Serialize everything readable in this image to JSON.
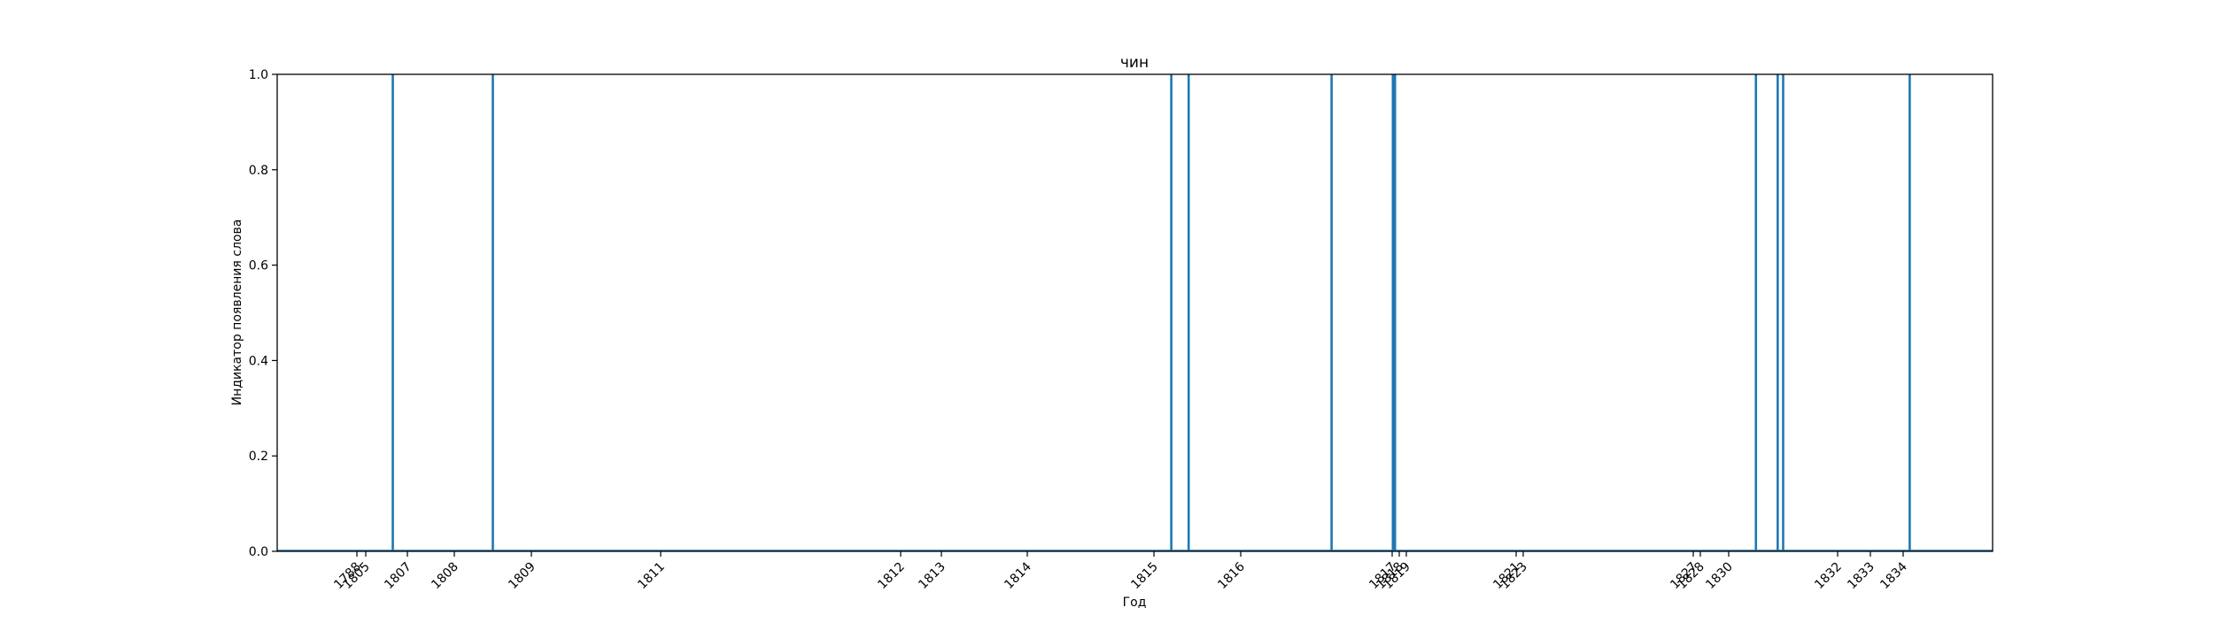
{
  "chart_data": {
    "type": "bar",
    "title": "чин",
    "xlabel": "Год",
    "ylabel": "Индикатор появления слова",
    "ylim": [
      0,
      1
    ],
    "yticks": [
      "0.0",
      "0.2",
      "0.4",
      "0.6",
      "0.8",
      "1.0"
    ],
    "xticks": [
      {
        "label": "1788",
        "value": 1788
      },
      {
        "label": "1805",
        "value": 1805
      },
      {
        "label": "1807",
        "value": 1807
      },
      {
        "label": "1808",
        "value": 1808
      },
      {
        "label": "1809",
        "value": 1809
      },
      {
        "label": "1811",
        "value": 1811
      },
      {
        "label": "1812",
        "value": 1812
      },
      {
        "label": "1813",
        "value": 1813
      },
      {
        "label": "1814",
        "value": 1814
      },
      {
        "label": "1815",
        "value": 1815
      },
      {
        "label": "1816",
        "value": 1816
      },
      {
        "label": "1817",
        "value": 1817
      },
      {
        "label": "1818",
        "value": 1818
      },
      {
        "label": "1819",
        "value": 1819
      },
      {
        "label": "1821",
        "value": 1821
      },
      {
        "label": "1823",
        "value": 1823
      },
      {
        "label": "1827",
        "value": 1827
      },
      {
        "label": "1828",
        "value": 1828
      },
      {
        "label": "1830",
        "value": 1830
      },
      {
        "label": "1832",
        "value": 1832
      },
      {
        "label": "1833",
        "value": 1833
      },
      {
        "label": "1834",
        "value": 1834
      }
    ],
    "occurrences": [
      1806.3,
      1808.5,
      1815.2,
      1815.4,
      1816.6,
      1817.1,
      1817.3,
      1817.4,
      1830.5,
      1830.9,
      1831.0,
      1834.2
    ],
    "values": [
      1,
      1,
      1,
      1,
      1,
      1,
      1,
      1,
      1,
      1,
      1,
      1
    ],
    "color": "#1f77b4",
    "grid": false,
    "legend": false
  }
}
